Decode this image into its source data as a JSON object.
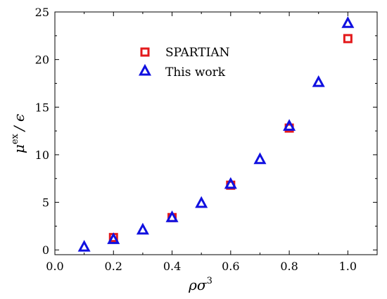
{
  "chart_data": {
    "type": "scatter",
    "xlabel": "ρσ",
    "xlabel_sup": "3",
    "ylabel": "μ",
    "ylabel_sup": "ex",
    "ylabel_tail": "/ ϵ",
    "xlim": [
      0.0,
      1.1
    ],
    "ylim": [
      -0.5,
      25
    ],
    "xticks": [
      0.0,
      0.2,
      0.4,
      0.6,
      0.8,
      1.0
    ],
    "xtick_labels": [
      "0.0",
      "0.2",
      "0.4",
      "0.6",
      "0.8",
      "1.0"
    ],
    "yticks": [
      0,
      5,
      10,
      15,
      20,
      25
    ],
    "ytick_labels": [
      "0",
      "5",
      "10",
      "15",
      "20",
      "25"
    ],
    "grid": false,
    "legend_position": "top-left",
    "series": [
      {
        "name": "SPARTIAN",
        "marker": "square",
        "color": "#e31a1c",
        "x": [
          0.2,
          0.4,
          0.6,
          0.8,
          1.0
        ],
        "y": [
          1.3,
          3.4,
          6.8,
          12.8,
          22.2
        ]
      },
      {
        "name": "This work",
        "marker": "triangle",
        "color": "#1010e0",
        "x": [
          0.1,
          0.2,
          0.3,
          0.4,
          0.5,
          0.6,
          0.7,
          0.8,
          0.9,
          1.0
        ],
        "y": [
          0.3,
          1.1,
          2.1,
          3.4,
          4.9,
          6.9,
          9.5,
          13.0,
          17.6,
          23.8
        ]
      }
    ]
  }
}
